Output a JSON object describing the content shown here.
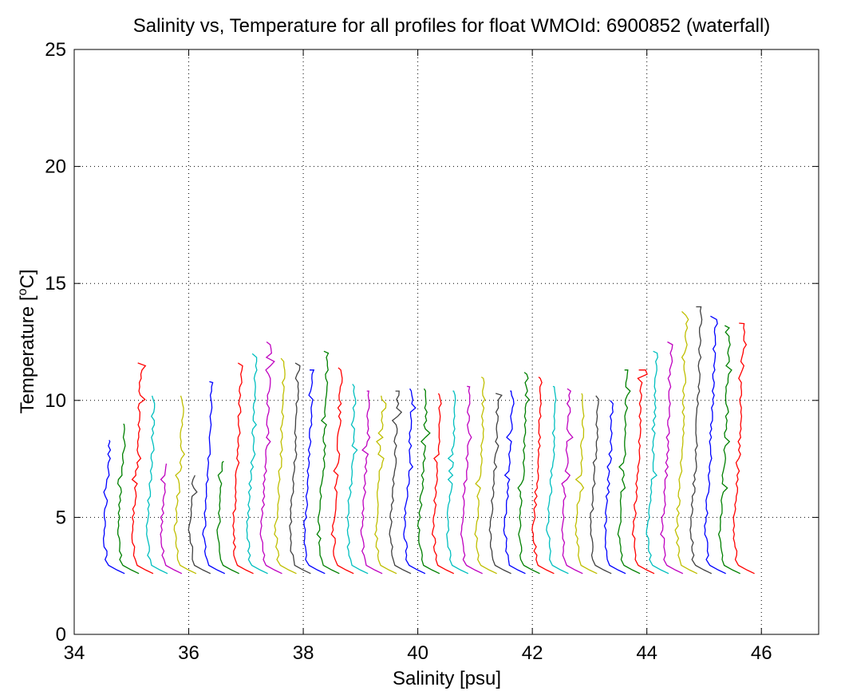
{
  "chart_data": {
    "type": "line",
    "title": "Salinity vs, Temperature for all profiles for float WMOId: 6900852 (waterfall)",
    "xlabel": "Salinity [psu]",
    "ylabel_main": "Temperature [",
    "ylabel_sup": "o",
    "ylabel_end": "C]",
    "xlim": [
      34,
      47
    ],
    "ylim": [
      0,
      25
    ],
    "xticks": [
      34,
      36,
      38,
      40,
      42,
      44,
      46
    ],
    "yticks": [
      0,
      5,
      10,
      15,
      20,
      25
    ],
    "grid": true,
    "colors": [
      "#0000ff",
      "#008000",
      "#ff0000",
      "#00bfbf",
      "#bf00bf",
      "#bfbf00",
      "#404040"
    ],
    "profile_count": 45,
    "offset_step": 0.25,
    "first_surface_salinity": 34.55,
    "top_temps": [
      8.3,
      9.0,
      11.6,
      10.2,
      7.3,
      10.2,
      6.8,
      10.8,
      7.4,
      11.6,
      12.0,
      12.5,
      11.8,
      11.6,
      11.3,
      12.1,
      11.4,
      10.7,
      10.4,
      10.2,
      10.4,
      10.5,
      10.5,
      10.3,
      10.4,
      10.6,
      11.0,
      10.3,
      10.4,
      11.2,
      11.0,
      10.6,
      10.5,
      10.3,
      10.2,
      10.0,
      11.3,
      11.3,
      12.1,
      12.5,
      13.8,
      14.0,
      13.6,
      13.2,
      13.3
    ]
  }
}
